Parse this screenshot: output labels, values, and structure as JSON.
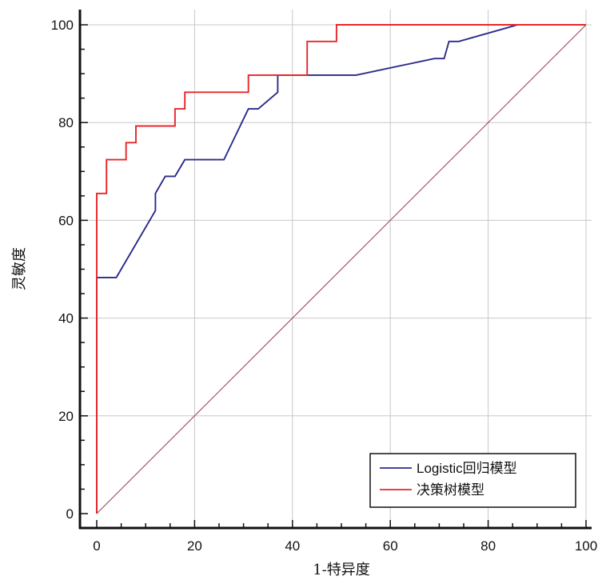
{
  "chart_data": {
    "type": "line",
    "title": "",
    "xlabel": "1-特异度",
    "ylabel": "灵敏度",
    "xlim": [
      0,
      100
    ],
    "ylim": [
      0,
      100
    ],
    "xticks": [
      0,
      20,
      40,
      60,
      80,
      100
    ],
    "yticks": [
      0,
      20,
      40,
      60,
      80,
      100
    ],
    "grid": true,
    "legend_position": "bottom-right",
    "series": [
      {
        "name": "Logistic回归模型",
        "color": "#2b2b8c",
        "step": false,
        "x": [
          0,
          0,
          4,
          12,
          12,
          14,
          16,
          18,
          26,
          31,
          33,
          37,
          37,
          53,
          69,
          71,
          72,
          74,
          86,
          100
        ],
        "y": [
          0,
          48.3,
          48.3,
          62,
          65.5,
          69,
          69,
          72.4,
          72.4,
          82.8,
          82.8,
          86.2,
          89.7,
          89.7,
          93.1,
          93.1,
          96.6,
          96.6,
          100,
          100
        ]
      },
      {
        "name": "决策树模型",
        "color": "#e8262a",
        "step": true,
        "x": [
          0,
          0,
          2,
          2,
          6,
          6,
          8,
          8,
          16,
          16,
          18,
          18,
          31,
          31,
          43,
          43,
          49,
          49,
          100
        ],
        "y": [
          0,
          65.5,
          65.5,
          72.4,
          72.4,
          75.9,
          75.9,
          79.3,
          79.3,
          82.8,
          82.8,
          86.2,
          86.2,
          89.7,
          89.7,
          96.6,
          96.6,
          100,
          100
        ]
      },
      {
        "name": "",
        "color": "#9c4a5a",
        "step": false,
        "x": [
          0,
          100
        ],
        "y": [
          0,
          100
        ]
      }
    ]
  }
}
